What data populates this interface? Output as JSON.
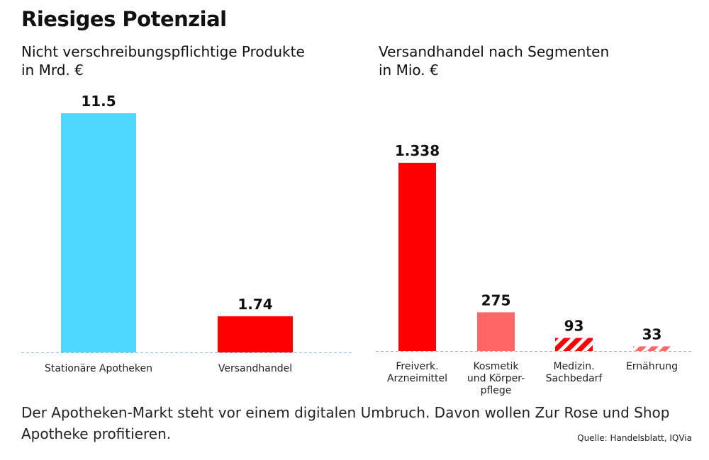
{
  "title": "Riesiges Potenzial",
  "footer": "Der Apotheken-Markt steht vor einem digitalen Umbruch. Davon wollen Zur Rose und Shop Apotheke profitieren.",
  "source": "Quelle: Handelsblatt, IQVia",
  "chart_data": [
    {
      "type": "bar",
      "title": "Nicht verschreibungspflichtige Produkte\nin Mrd. €",
      "categories": [
        "Stationäre Apotheken",
        "Versandhandel"
      ],
      "values": [
        11.5,
        1.74
      ],
      "value_labels": [
        "11.5",
        "1.74"
      ],
      "colors": [
        "#4dd8ff",
        "#ff0000"
      ],
      "patterns": [
        "solid",
        "solid"
      ],
      "ylim": [
        0,
        11.5
      ],
      "grid": false
    },
    {
      "type": "bar",
      "title": "Versandhandel nach Segmenten\nin Mio. €",
      "categories": [
        "Freiverk.\nArzneimittel",
        "Kosmetik\nund Körper-\npflege",
        "Medizin.\nSachbedarf",
        "Ernährung"
      ],
      "values": [
        1338,
        275,
        93,
        33
      ],
      "value_labels": [
        "1.338",
        "275",
        "93",
        "33"
      ],
      "colors": [
        "#ff0000",
        "#ff6666",
        "#ff0000",
        "#ff6666"
      ],
      "patterns": [
        "solid",
        "solid",
        "hatched",
        "hatched"
      ],
      "ylim": [
        0,
        1338
      ],
      "grid": false
    }
  ]
}
